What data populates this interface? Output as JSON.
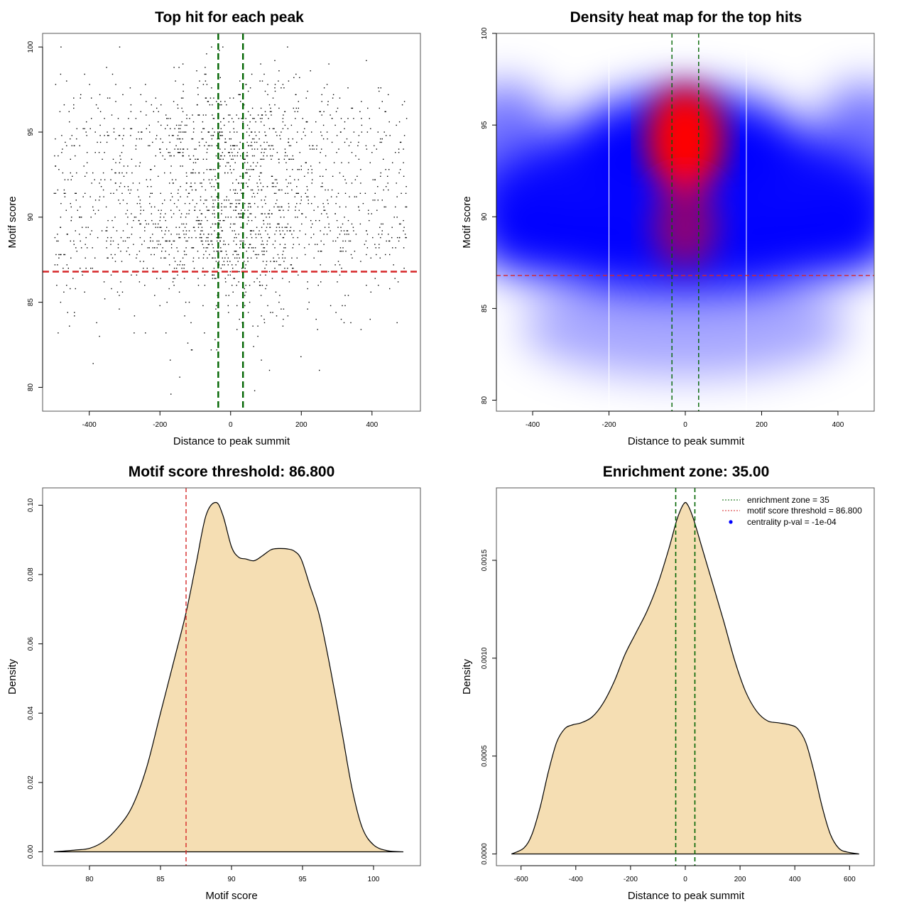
{
  "colors": {
    "threshold_line": "#d62728",
    "enrichment_line": "#006400",
    "density_fill": "#f5deb3",
    "density_line": "#000000",
    "heat_low": "#ffffff",
    "heat_mid": "#0000ff",
    "heat_high": "#ff0000",
    "point": "#000000",
    "legend_dot": "#0000ff"
  },
  "chart_data": [
    {
      "id": "scatter",
      "type": "scatter",
      "title": "Top hit for each peak",
      "xlabel": "Distance to peak summit",
      "ylabel": "Motif score",
      "xlim": [
        -532,
        537
      ],
      "ylim": [
        78.6,
        100.8
      ],
      "xticks": [
        -400,
        -200,
        0,
        200,
        400
      ],
      "yticks": [
        80,
        85,
        90,
        95,
        100
      ],
      "hlines": [
        86.8
      ],
      "vlines": [
        -35,
        35
      ],
      "grid": false,
      "points": {
        "n": 2000,
        "x_range": [
          -500,
          500
        ],
        "y_range": [
          79.4,
          100
        ],
        "description": "One point per peak; x = motif distance to summit, y = top motif score; denser near x=0 and y 88-95"
      }
    },
    {
      "id": "heatmap",
      "type": "heatmap",
      "title": "Density heat map for the top hits",
      "xlabel": "Distance to peak summit",
      "ylabel": "Motif score",
      "xlim": [
        -495,
        495
      ],
      "ylim": [
        79.4,
        100
      ],
      "xticks": [
        -400,
        -200,
        0,
        200,
        400
      ],
      "yticks": [
        80,
        85,
        90,
        95,
        100
      ],
      "hlines": [
        86.8
      ],
      "vlines": [
        -35,
        35
      ],
      "bin_boundaries_x": [
        -200,
        160
      ],
      "hotspots": [
        {
          "x": 0,
          "y": 94.2,
          "intensity": 1.0
        },
        {
          "x": 0,
          "y": 89.5,
          "intensity": 0.75
        },
        {
          "x": -260,
          "y": 88.5,
          "intensity": 0.55
        },
        {
          "x": 260,
          "y": 88.6,
          "intensity": 0.55
        },
        {
          "x": -150,
          "y": 93.5,
          "intensity": 0.5
        },
        {
          "x": 150,
          "y": 93.5,
          "intensity": 0.5
        }
      ]
    },
    {
      "id": "score-density",
      "type": "area",
      "title": "Motif score threshold: 86.800",
      "xlabel": "Motif score",
      "ylabel": "Density",
      "xlim": [
        76.7,
        103.3
      ],
      "ylim": [
        -0.004,
        0.105
      ],
      "xticks": [
        80,
        85,
        90,
        95,
        100
      ],
      "yticks": [
        0.0,
        0.02,
        0.04,
        0.06,
        0.08,
        0.1
      ],
      "ytick_labels": [
        "0.00",
        "0.02",
        "0.04",
        "0.06",
        "0.08",
        "0.10"
      ],
      "vlines": [
        86.8
      ],
      "x": [
        77.5,
        79.0,
        80.0,
        81.0,
        82.0,
        83.0,
        84.0,
        85.0,
        86.0,
        86.8,
        87.5,
        88.2,
        88.9,
        89.4,
        90.0,
        90.5,
        91.0,
        91.6,
        92.2,
        92.8,
        93.3,
        93.9,
        94.4,
        94.9,
        95.5,
        96.2,
        97.0,
        97.8,
        98.5,
        99.2,
        100.0,
        101.0,
        102.1
      ],
      "y": [
        0.0,
        0.0005,
        0.001,
        0.003,
        0.007,
        0.013,
        0.024,
        0.04,
        0.056,
        0.069,
        0.083,
        0.097,
        0.1008,
        0.097,
        0.088,
        0.085,
        0.0845,
        0.084,
        0.0855,
        0.0872,
        0.0875,
        0.0874,
        0.0868,
        0.0845,
        0.077,
        0.068,
        0.052,
        0.034,
        0.018,
        0.007,
        0.002,
        0.0003,
        0.0
      ]
    },
    {
      "id": "distance-density",
      "type": "area",
      "title": "Enrichment zone: 35.00",
      "xlabel": "Distance to peak summit",
      "ylabel": "Density",
      "xlim": [
        -690,
        690
      ],
      "ylim": [
        -6e-05,
        0.00187
      ],
      "xticks": [
        -600,
        -400,
        -200,
        0,
        200,
        400,
        600
      ],
      "yticks": [
        0.0,
        0.0005,
        0.001,
        0.0015
      ],
      "ytick_labels": [
        "0.0000",
        "0.0005",
        "0.0010",
        "0.0015"
      ],
      "vlines": [
        -35,
        35
      ],
      "x": [
        -635,
        -590,
        -560,
        -530,
        -500,
        -470,
        -440,
        -410,
        -380,
        -340,
        -300,
        -260,
        -220,
        -180,
        -140,
        -100,
        -60,
        -30,
        -5,
        10,
        30,
        60,
        100,
        140,
        180,
        220,
        260,
        300,
        340,
        380,
        410,
        440,
        470,
        500,
        530,
        560,
        590,
        635
      ],
      "y": [
        0.0,
        3e-05,
        0.0001,
        0.00024,
        0.00042,
        0.00057,
        0.00064,
        0.00066,
        0.00067,
        0.0007,
        0.00077,
        0.00088,
        0.00102,
        0.00113,
        0.00124,
        0.00138,
        0.00156,
        0.00171,
        0.00179,
        0.00178,
        0.00171,
        0.00157,
        0.00138,
        0.00119,
        0.00099,
        0.00083,
        0.00073,
        0.00068,
        0.00067,
        0.00066,
        0.00064,
        0.00057,
        0.00042,
        0.00024,
        0.0001,
        3e-05,
        1e-05,
        0.0
      ],
      "legend": {
        "position": "top-right",
        "entries": [
          {
            "label": "enrichment zone = 35",
            "style": "dotted",
            "color": "#006400"
          },
          {
            "label": "motif score threshold = 86.800",
            "style": "dotted",
            "color": "#d62728"
          },
          {
            "label": "centrality p-val = -1e-04",
            "style": "point",
            "color": "#0000ff"
          }
        ]
      }
    }
  ]
}
